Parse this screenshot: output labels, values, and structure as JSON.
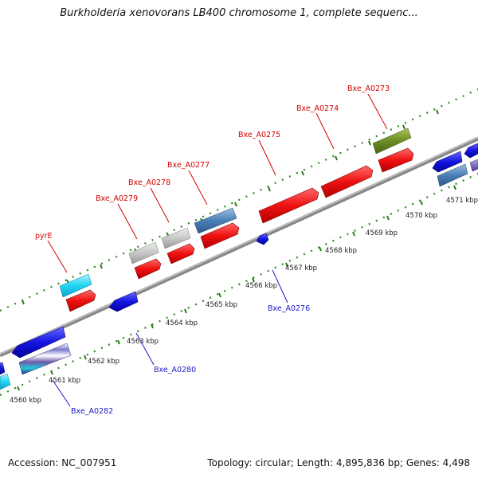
{
  "title": "Burkholderia xenovorans LB400 chromosome 1, complete sequenc...",
  "footer": {
    "accession": "Accession: NC_007951",
    "topology": "Topology: circular; Length: 4,895,836 bp; Genes: 4,498"
  },
  "colors": {
    "forward_label": "#d40000",
    "reverse_label": "#1a1acc",
    "tick_major": "#2a7a1a",
    "tick_minor": "#2a7a1a",
    "backbone": "#888888"
  },
  "scale_labels": [
    "4560 kbp",
    "4561 kbp",
    "4562 kbp",
    "4563 kbp",
    "4564 kbp",
    "4565 kbp",
    "4566 kbp",
    "4567 kbp",
    "4568 kbp",
    "4569 kbp",
    "4570 kbp",
    "4571 kbp"
  ],
  "gene_labels": [
    {
      "id": "Bxe_A0273",
      "strand": "forward"
    },
    {
      "id": "Bxe_A0274",
      "strand": "forward"
    },
    {
      "id": "Bxe_A0275",
      "strand": "forward"
    },
    {
      "id": "Bxe_A0277",
      "strand": "forward"
    },
    {
      "id": "Bxe_A0278",
      "strand": "forward"
    },
    {
      "id": "Bxe_A0279",
      "strand": "forward"
    },
    {
      "id": "pyrE",
      "strand": "forward"
    },
    {
      "id": "Bxe_A0276",
      "strand": "reverse"
    },
    {
      "id": "Bxe_A0280",
      "strand": "reverse"
    },
    {
      "id": "Bxe_A0282",
      "strand": "reverse"
    }
  ]
}
